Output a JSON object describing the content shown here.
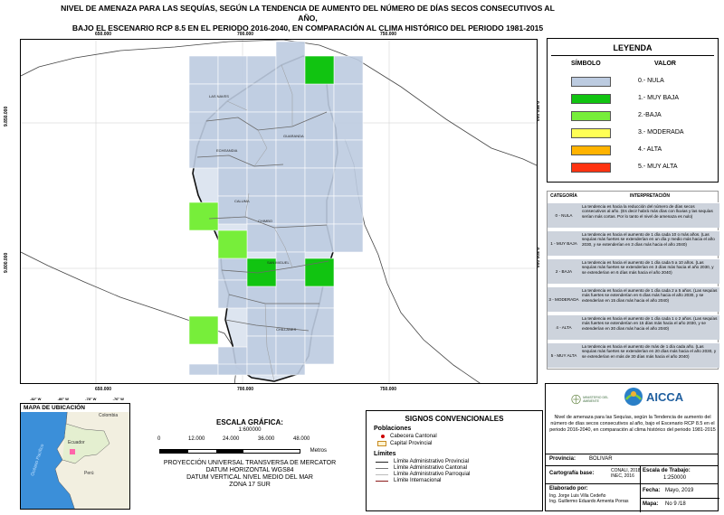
{
  "title": {
    "line1": "NIVEL DE AMENAZA PARA LAS SEQUÍAS, SEGÚN LA TENDENCIA DE AUMENTO DEL NÚMERO DE DÍAS SECOS CONSECUTIVOS AL AÑO,",
    "line2": "BAJO EL ESCENARIO RCP 8.5 EN EL PERIODO 2016-2040, EN COMPARACIÓN AL CLIMA HISTÓRICO DEL PERIODO 1981-2015"
  },
  "map": {
    "x_ticks": [
      "650.000",
      "700.000",
      "750.000"
    ],
    "y_ticks": [
      "9.850.000",
      "9.800.000"
    ],
    "places": [
      "LAS NAVES",
      "ECHEANDIA",
      "GUARANDA",
      "CALUMA",
      "CHIMBO",
      "SAN MIGUEL",
      "CHILLANES"
    ],
    "colors": {
      "nula": "#bccbe0",
      "muy_baja": "#11c411",
      "baja": "#77ee3a",
      "moderada": "#ffff55",
      "alta": "#ffb300",
      "muy_alta": "#ff3311",
      "boundary": "#333333"
    }
  },
  "legend": {
    "title": "LEYENDA",
    "col_symbol": "SÍMBOLO",
    "col_value": "VALOR",
    "items": [
      {
        "label": "0.- NULA",
        "color": "#bccbe0"
      },
      {
        "label": "1.- MUY BAJA",
        "color": "#11c411"
      },
      {
        "label": "2.-BAJA",
        "color": "#77ee3a"
      },
      {
        "label": "3.- MODERADA",
        "color": "#ffff55"
      },
      {
        "label": "4.- ALTA",
        "color": "#ffb300"
      },
      {
        "label": "5.- MUY ALTA",
        "color": "#ff3311"
      }
    ]
  },
  "interpretation": {
    "col_category": "CATEGORÍA",
    "col_text": "INTERPRETACIÓN",
    "rows": [
      {
        "cat": "0 - NULA",
        "text": "La tendencia es hacia la reducción del número de días secos consecutivos al año. (Es decir habrá más días con lluvias y las sequías serían más cortas. Por lo tanto el nivel de amenaza es nulo)"
      },
      {
        "cat": "1 - MUY BAJA",
        "text": "La tendencia es hacia el aumento de 1 día cada 10 o más años. (Las sequías más fuertes se extenderían en un día y medio más hacia el año 2030, y se extenderían en 3 días más hacia el año 2040)"
      },
      {
        "cat": "2 - BAJA",
        "text": "La tendencia es hacia el aumento de 1 día cada 5 a 10 años. (Las sequías más fuertes se extenderían en 3 días más hacia el año 2030, y se extenderían en 6 días más hacia el año 2040)"
      },
      {
        "cat": "3 - MODERADA",
        "text": "La tendencia es hacia el aumento de 1 día cada 2 a 5 años. (Las sequías más fuertes se extenderían en 6 días más hacia el año 2030, y se extenderían en 15 días más hacia el año 2040)"
      },
      {
        "cat": "4 - ALTA",
        "text": "La tendencia es hacia el aumento de 1 día cada 1 o 2 años. (Las sequías más fuertes se extenderían en 15 días más hacia el año 2030, y se extenderían en 30 días más hacia el año 2040)"
      },
      {
        "cat": "5 - MUY ALTA",
        "text": "La tendencia es hacia el aumento de más de 1 día cada año. (Las sequías más fuertes se extenderían en 20 días más hacia el año 2030, y se extenderían en más de 30 días más hacia el año 2040)"
      }
    ]
  },
  "location_map": {
    "title": "MAPA DE UBICACIÓN",
    "countries": [
      "Colombia",
      "Ecuador",
      "Perú"
    ],
    "ocean": "Océano Pacífico",
    "lon_ticks": [
      "-82° W",
      "-80° W",
      "-78° W",
      "-76° W"
    ]
  },
  "scale": {
    "label": "ESCALA GRÁFICA:",
    "ratio": "1:600000",
    "marks": [
      "0",
      "12.000",
      "24.000",
      "36.000",
      "48.000"
    ],
    "unit": "Metros",
    "projection": [
      "PROYECCIÓN UNIVERSAL TRANSVERSA DE MERCATOR",
      "DATUM HORIZONTAL WGS84",
      "DATUM VERTICAL NIVEL MEDIO DEL MAR",
      "ZONA 17 SUR"
    ]
  },
  "signs": {
    "title": "SIGNOS CONVENCIONALES",
    "populations_title": "Poblaciones",
    "populations": [
      "Cabecera Cantonal",
      "Capital Provincial"
    ],
    "limits_title": "Límites",
    "limits": [
      {
        "label": "Límite Administrativo Provincial",
        "color": "#222222"
      },
      {
        "label": "Límite Administrativo Cantonal",
        "color": "#777777"
      },
      {
        "label": "Límite Administrativo Parroquial",
        "color": "#bbbbbb"
      },
      {
        "label": "Límite Internacional",
        "color": "#8b1a1a"
      }
    ]
  },
  "info": {
    "logo_org": "AICCA",
    "logo_ministry": "MINISTERIO DEL AMBIENTE",
    "description": "Nivel de amenaza para las Sequías, según la Tendencia de aumento del número de días secos consecutivos al año, bajo el Escenario RCP 8.5 en el periodo 2016-2040, en comparación al clima histórico del periodo 1981-2015",
    "province_label": "Provincia:",
    "province": "BOLIVAR",
    "base_label": "Cartografía base:",
    "base_value_1": "CONALI, 2018",
    "base_value_2": "INEC, 2016",
    "work_scale_label": "Escala de Trabajo:",
    "work_scale": "1:250000",
    "prepared_label": "Elaborado por:",
    "prepared_1": "Ing. Jorge Luis Villa Cedeño",
    "prepared_2": "Ing. Guillermo Eduardo Armenta Porras",
    "date_label": "Fecha:",
    "date": "Mayo, 2019",
    "map_label": "Mapa:",
    "map_no": "No 9 /18"
  }
}
